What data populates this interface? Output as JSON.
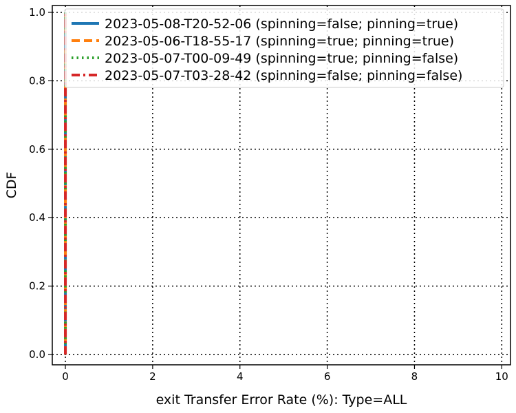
{
  "chart_data": {
    "type": "line",
    "title": "",
    "xlabel": "exit Transfer Error Rate (%): Type=ALL",
    "ylabel": "CDF",
    "xlim": [
      -0.3,
      10.2
    ],
    "ylim": [
      -0.03,
      1.02
    ],
    "xticks": [
      0,
      2,
      4,
      6,
      8,
      10
    ],
    "xtick_labels": [
      "0",
      "2",
      "4",
      "6",
      "8",
      "10"
    ],
    "yticks": [
      0.0,
      0.2,
      0.4,
      0.6,
      0.8,
      1.0
    ],
    "ytick_labels": [
      "0.0",
      "0.2",
      "0.4",
      "0.6",
      "0.8",
      "1.0"
    ],
    "grid": true,
    "legend_position": "top-right",
    "series": [
      {
        "name": "2023-05-08-T20-52-06 (spinning=false; pinning=true)",
        "color": "#1f77b4",
        "style": "solid",
        "x": [
          0,
          0
        ],
        "y": [
          0.0,
          1.0
        ]
      },
      {
        "name": "2023-05-06-T18-55-17 (spinning=true; pinning=true)",
        "color": "#ff7f0e",
        "style": "dashed",
        "x": [
          0,
          0
        ],
        "y": [
          0.0,
          1.0
        ]
      },
      {
        "name": "2023-05-07-T00-09-49 (spinning=true; pinning=false)",
        "color": "#2ca02c",
        "style": "dotted",
        "x": [
          0,
          0
        ],
        "y": [
          0.0,
          1.0
        ]
      },
      {
        "name": "2023-05-07-T03-28-42 (spinning=false; pinning=false)",
        "color": "#d62728",
        "style": "dashdot",
        "x": [
          0,
          0
        ],
        "y": [
          0.0,
          1.0
        ]
      }
    ]
  }
}
